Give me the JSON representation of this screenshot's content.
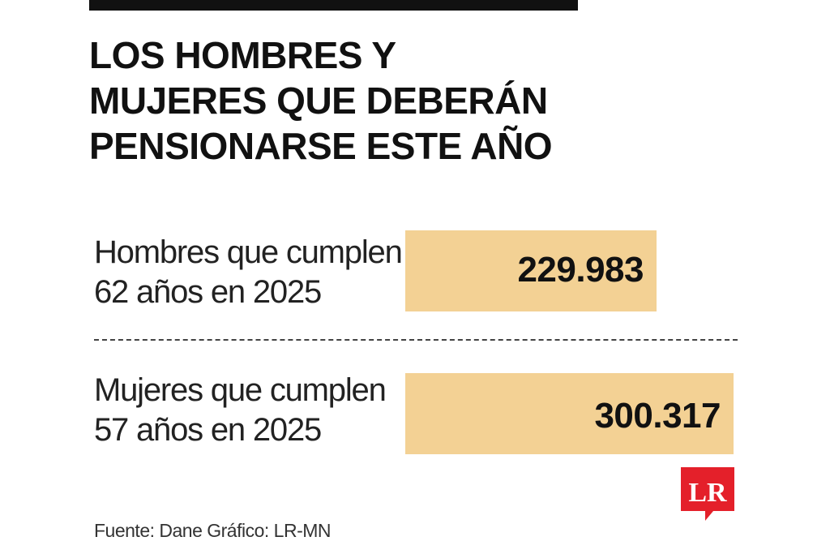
{
  "title_lines": [
    "LOS HOMBRES Y",
    "MUJERES QUE DEBERÁN",
    "PENSIONARSE ESTE AÑO"
  ],
  "chart_data": {
    "type": "bar",
    "orientation": "horizontal",
    "categories": [
      "Hombres que cumplen 62 años en 2025",
      "Mujeres que cumplen 57 años en 2025"
    ],
    "values": [
      229983,
      300317
    ],
    "value_labels": [
      "229.983",
      "300.317"
    ],
    "category_lines": [
      [
        "Hombres que cumplen",
        "62 años en 2025"
      ],
      [
        "Mujeres que cumplen",
        "57 años en 2025"
      ]
    ],
    "bar_color": "#f3d194",
    "xlim": [
      0,
      300317
    ]
  },
  "source": "Fuente: Dane  Gráfico: LR-MN",
  "logo_text": "LR",
  "colors": {
    "bar": "#f3d194",
    "logo": "#e4202a",
    "title": "#111111"
  }
}
